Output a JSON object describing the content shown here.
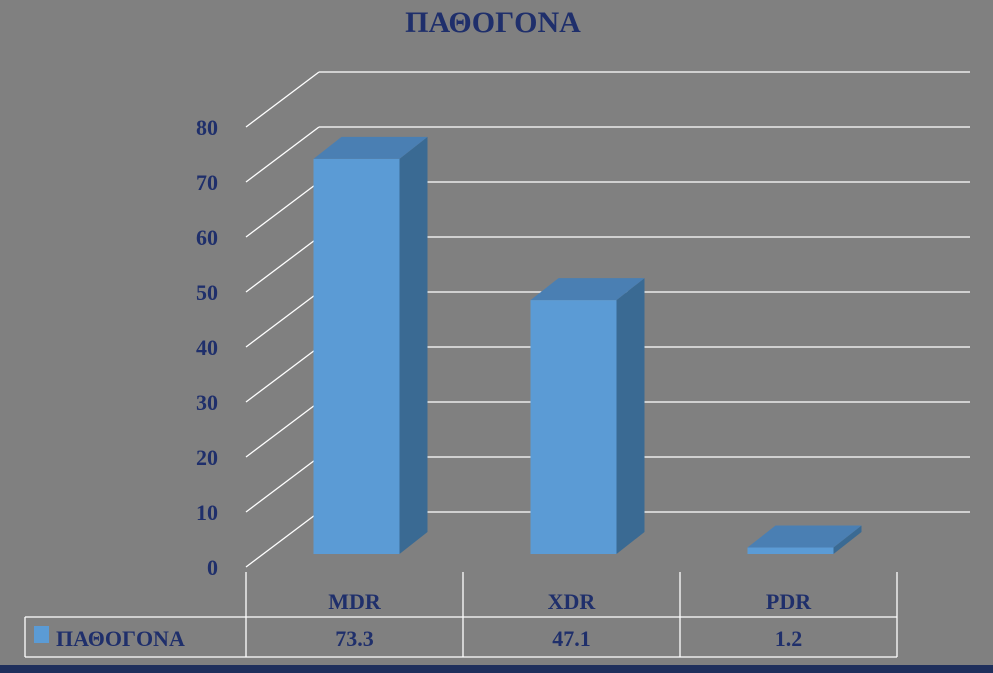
{
  "chart_data": {
    "type": "bar",
    "title": "ΠΑΘΟΓΟΝΑ",
    "categories": [
      "MDR",
      "XDR",
      "PDR"
    ],
    "series": [
      {
        "name": "ΠΑΘΟΓΟΝΑ",
        "values": [
          73.3,
          47.1,
          1.2
        ]
      }
    ],
    "value_labels": [
      "73.3",
      "47.1",
      "1.2"
    ],
    "ylim": [
      0,
      80
    ],
    "yticks": [
      0,
      10,
      20,
      30,
      40,
      50,
      60,
      70,
      80
    ],
    "grid": true,
    "style": "3d-column-with-data-table",
    "colors": {
      "background": "#808080",
      "text": "#1f2f6b",
      "bar_front": "#5b9bd5",
      "bar_side": "#3a6a93",
      "bar_top": "#4a7fb3",
      "grid": "#ffffff"
    }
  }
}
